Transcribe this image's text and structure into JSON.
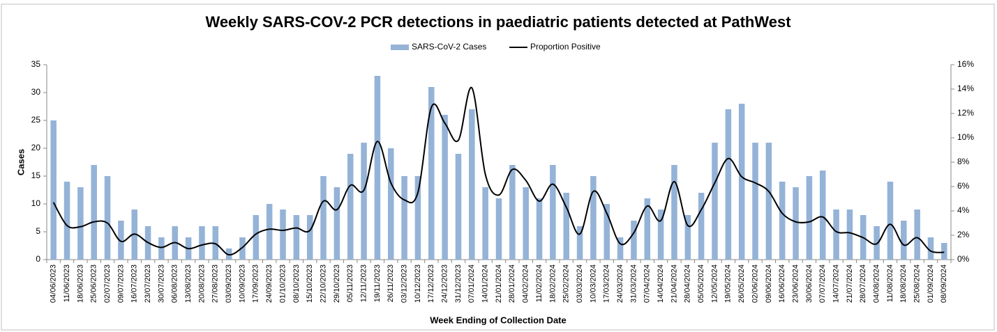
{
  "chart_data": {
    "type": "bar_line",
    "title": "Weekly SARS-COV-2 PCR detections in paediatric patients detected at PathWest",
    "x_label": "Week Ending of Collection Date",
    "y_label": "Cases",
    "categories": [
      "04/06/2023",
      "11/06/2023",
      "18/06/2023",
      "25/06/2023",
      "02/07/2023",
      "09/07/2023",
      "16/07/2023",
      "23/07/2023",
      "30/07/2023",
      "06/08/2023",
      "13/08/2023",
      "20/08/2023",
      "27/08/2023",
      "03/09/2023",
      "10/09/2023",
      "17/09/2023",
      "24/09/2023",
      "01/10/2023",
      "08/10/2023",
      "15/10/2023",
      "22/10/2023",
      "29/10/2023",
      "05/11/2023",
      "12/11/2023",
      "19/11/2023",
      "26/11/2023",
      "03/12/2023",
      "10/12/2023",
      "17/12/2023",
      "24/12/2023",
      "31/12/2023",
      "07/01/2024",
      "14/01/2024",
      "21/01/2024",
      "28/01/2024",
      "04/02/2024",
      "11/02/2024",
      "18/02/2024",
      "25/02/2024",
      "03/03/2024",
      "10/03/2024",
      "17/03/2024",
      "24/03/2024",
      "31/03/2024",
      "07/04/2024",
      "14/04/2024",
      "21/04/2024",
      "28/04/2024",
      "05/05/2024",
      "12/05/2024",
      "19/05/2024",
      "26/05/2024",
      "02/06/2024",
      "09/06/2024",
      "16/06/2024",
      "23/06/2024",
      "30/06/2024",
      "07/07/2024",
      "14/07/2024",
      "21/07/2024",
      "28/07/2024",
      "04/08/2024",
      "11/08/2024",
      "18/08/2024",
      "25/08/2024",
      "01/09/2024",
      "08/09/2024"
    ],
    "series": [
      {
        "name": "SARS-CoV-2 Cases",
        "color": "#95b3d7",
        "kind": "bar",
        "values": [
          25,
          14,
          13,
          17,
          15,
          7,
          9,
          6,
          4,
          6,
          4,
          6,
          6,
          2,
          4,
          8,
          10,
          9,
          8,
          8,
          15,
          13,
          19,
          21,
          33,
          20,
          15,
          15,
          31,
          26,
          19,
          27,
          13,
          11,
          17,
          13,
          11,
          17,
          12,
          6,
          15,
          10,
          4,
          7,
          11,
          9,
          17,
          8,
          12,
          21,
          27,
          28,
          21,
          21,
          14,
          13,
          15,
          16,
          9,
          9,
          8,
          6,
          14,
          7,
          9,
          4,
          3
        ]
      },
      {
        "name": "Proportion Positive",
        "color": "#000000",
        "kind": "line",
        "axis": "y2",
        "values": [
          4.7,
          2.8,
          2.7,
          3.1,
          3.0,
          1.5,
          2.1,
          1.4,
          1.0,
          1.4,
          0.9,
          1.2,
          1.3,
          0.4,
          1.0,
          2.1,
          2.5,
          2.4,
          2.6,
          2.4,
          4.8,
          4.1,
          6.1,
          5.7,
          9.7,
          6.3,
          4.9,
          5.5,
          12.5,
          11.2,
          9.8,
          14.1,
          7.0,
          5.3,
          7.4,
          6.5,
          4.8,
          6.2,
          4.3,
          2.1,
          5.6,
          3.8,
          1.3,
          2.2,
          4.4,
          3.2,
          6.4,
          2.8,
          4.1,
          6.3,
          8.3,
          6.8,
          6.3,
          5.6,
          3.8,
          3.1,
          3.1,
          3.5,
          2.3,
          2.2,
          1.8,
          1.3,
          2.9,
          1.2,
          1.8,
          0.7,
          0.6
        ]
      }
    ],
    "ylim": [
      0,
      35
    ],
    "yticks": [
      0,
      5,
      10,
      15,
      20,
      25,
      30,
      35
    ],
    "y2lim": [
      0,
      16
    ],
    "y2ticks": [
      {
        "value": 0,
        "label": "0%"
      },
      {
        "value": 2,
        "label": "2%"
      },
      {
        "value": 4,
        "label": "4%"
      },
      {
        "value": 6,
        "label": "6%"
      },
      {
        "value": 8,
        "label": "8%"
      },
      {
        "value": 10,
        "label": "10%"
      },
      {
        "value": 12,
        "label": "12%"
      },
      {
        "value": 14,
        "label": "14%"
      },
      {
        "value": 16,
        "label": "16%"
      }
    ],
    "legend": "top"
  }
}
